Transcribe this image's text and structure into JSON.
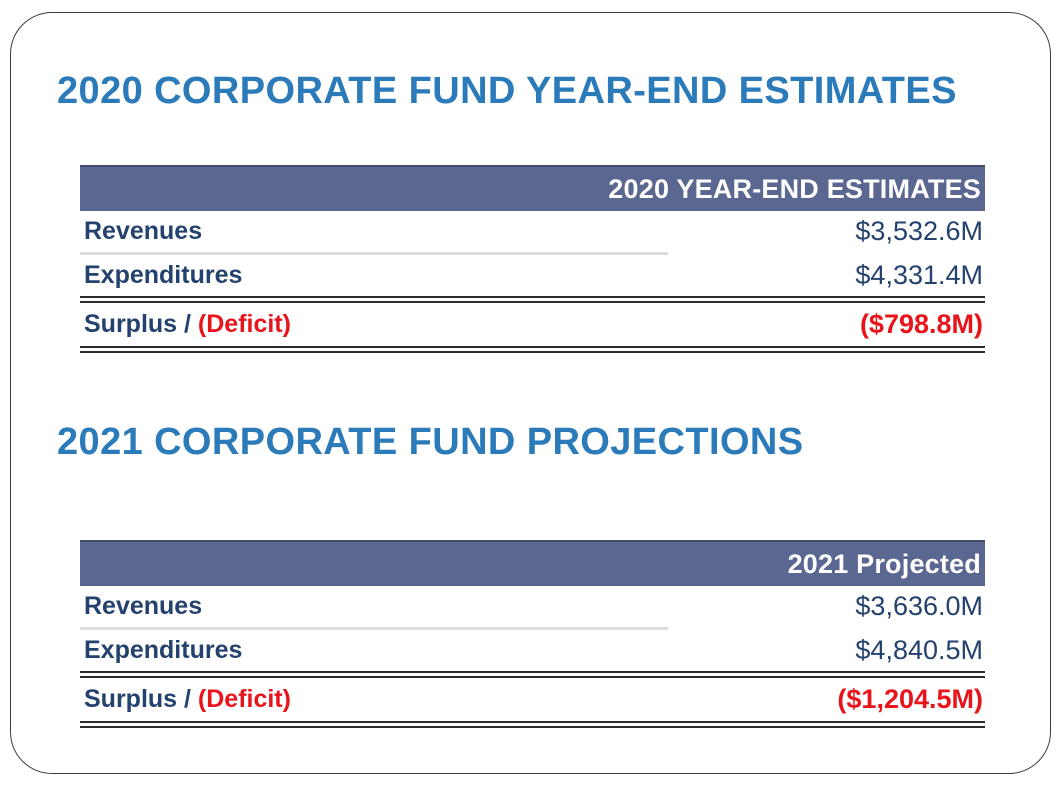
{
  "slide": {
    "sections": [
      {
        "title": "2020 CORPORATE FUND YEAR-END ESTIMATES",
        "table": {
          "header": "2020 YEAR-END ESTIMATES",
          "rows": [
            {
              "label": "Revenues",
              "value": "$3,532.6M"
            },
            {
              "label": "Expenditures",
              "value": "$4,331.4M"
            }
          ],
          "total_row": {
            "label_positive": "Surplus / ",
            "label_negative": "(Deficit)",
            "value": "($798.8M)"
          }
        }
      },
      {
        "title": "2021 CORPORATE FUND PROJECTIONS",
        "table": {
          "header": "2021 Projected",
          "rows": [
            {
              "label": "Revenues",
              "value": "$3,636.0M"
            },
            {
              "label": "Expenditures",
              "value": "$4,840.5M"
            }
          ],
          "total_row": {
            "label_positive": "Surplus / ",
            "label_negative": "(Deficit)",
            "value": "($1,204.5M)"
          }
        }
      }
    ]
  },
  "colors": {
    "title_blue": "#2b7ab9",
    "table_header_bg": "#5a6791",
    "table_header_text": "#ffffff",
    "row_text_navy": "#24426e",
    "deficit_red": "#e8141c",
    "divider_gray": "#dcdcde",
    "rule_dark": "#2b2b2b",
    "frame_border": "#3c3c3c",
    "background": "#ffffff"
  }
}
